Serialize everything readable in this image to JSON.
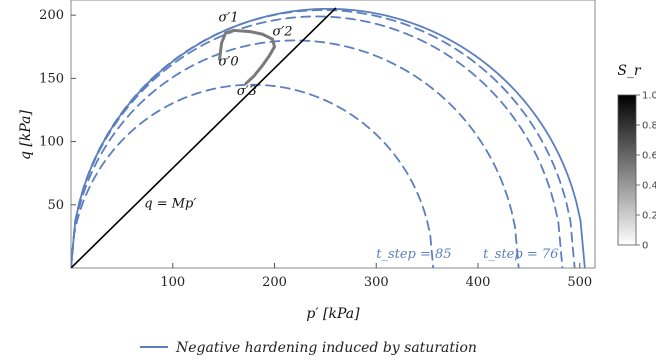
{
  "chart_data": {
    "type": "line",
    "xlabel": "p′ [kPa]",
    "ylabel": "q [kPa]",
    "xlim": [
      0,
      515
    ],
    "ylim": [
      0,
      212
    ],
    "x_ticks": [
      100,
      200,
      300,
      400,
      500
    ],
    "y_ticks": [
      50,
      100,
      150,
      200
    ],
    "grid": false,
    "series": [
      {
        "name": "Negative hardening induced by saturation",
        "style": "solid",
        "color": "#5b7fbf",
        "ellipse": {
          "p0": 505,
          "q_max": 205
        }
      },
      {
        "style": "dashed",
        "color": "#5b7fbf",
        "ellipse": {
          "p0": 495,
          "q_max": 204
        }
      },
      {
        "style": "dashed",
        "color": "#5b7fbf",
        "ellipse": {
          "p0": 483,
          "q_max": 199
        }
      },
      {
        "style": "dashed",
        "color": "#5b7fbf",
        "ellipse": {
          "p0": 440,
          "q_max": 180
        }
      },
      {
        "style": "dashed",
        "color": "#5b7fbf",
        "ellipse": {
          "p0": 356,
          "q_max": 145
        }
      },
      {
        "style": "solid",
        "color": "#000000",
        "line": {
          "slope": 0.79,
          "x_range": [
            0,
            260
          ]
        }
      },
      {
        "style": "solid",
        "color": "#7a7a7a",
        "path": [
          [
            146,
            165
          ],
          [
            148,
            178
          ],
          [
            152,
            186
          ],
          [
            160,
            188
          ],
          [
            176,
            187
          ],
          [
            188,
            185
          ],
          [
            198,
            181
          ],
          [
            200,
            175
          ],
          [
            195,
            168
          ],
          [
            188,
            160
          ],
          [
            180,
            152
          ],
          [
            172,
            146
          ]
        ]
      }
    ],
    "annotations": [
      {
        "text": "σ′1",
        "x": 145,
        "y": 195,
        "color": "#111111"
      },
      {
        "text": "σ′2",
        "x": 198,
        "y": 184,
        "color": "#111111"
      },
      {
        "text": "σ′0",
        "x": 145,
        "y": 160,
        "color": "#111111"
      },
      {
        "text": "σ′3",
        "x": 163,
        "y": 137,
        "color": "#111111"
      },
      {
        "text": "q = Mp′",
        "x": 72,
        "y": 48,
        "color": "#111111"
      },
      {
        "text": "t_step = 85",
        "x": 300,
        "y": 8,
        "color": "#5b7fbf"
      },
      {
        "text": "t_step = 76",
        "x": 405,
        "y": 8,
        "color": "#5b7fbf"
      }
    ],
    "colorbar": {
      "label": "S_r",
      "range": [
        0,
        1.0
      ],
      "ticks": [
        "0",
        "0.2",
        "0.4",
        "0.6",
        "0.8",
        "1.0"
      ]
    },
    "legend": {
      "position": "bottom-center",
      "label": "Negative hardening induced by saturation"
    }
  }
}
